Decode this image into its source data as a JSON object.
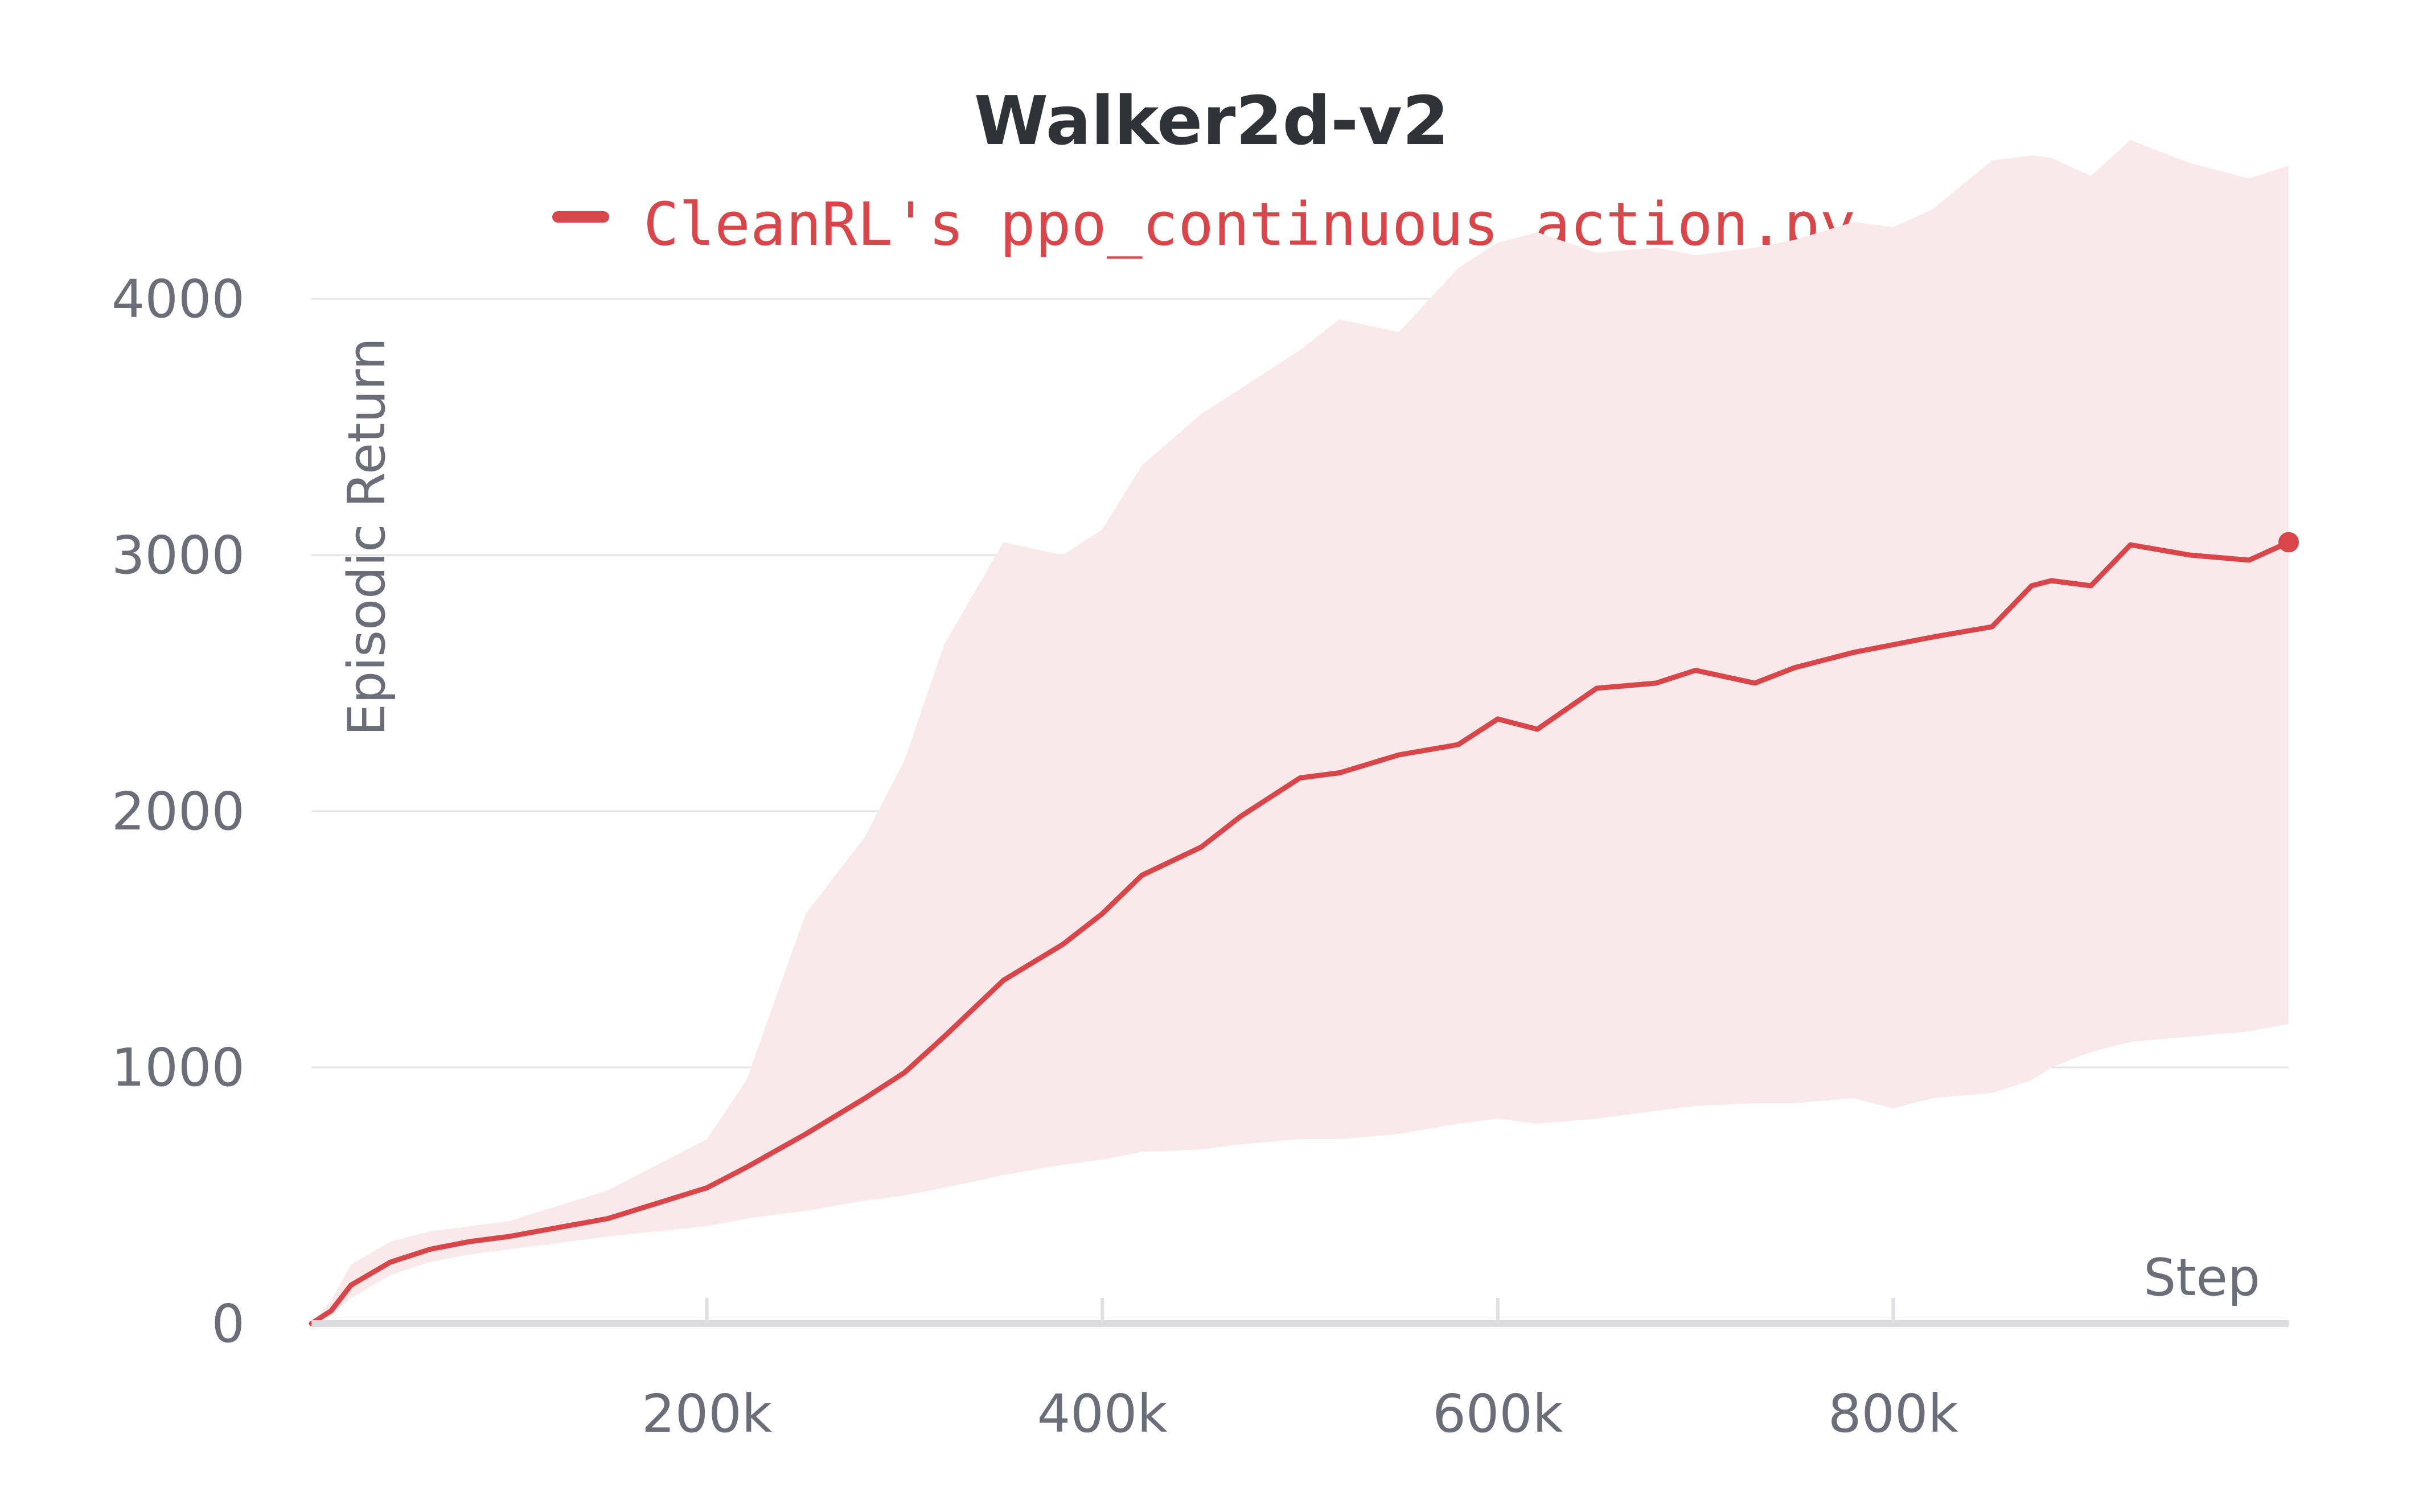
{
  "chart_data": {
    "type": "line",
    "title": "Walker2d-v2",
    "xlabel": "Step",
    "ylabel": "Episodic Return",
    "xlim": [
      0,
      1000000
    ],
    "ylim": [
      0,
      4500
    ],
    "x_ticks": [
      200000,
      400000,
      600000,
      800000
    ],
    "x_tick_labels": [
      "200k",
      "400k",
      "600k",
      "800k"
    ],
    "y_ticks": [
      0,
      1000,
      2000,
      3000,
      4000
    ],
    "y_tick_labels": [
      "0",
      "1000",
      "2000",
      "3000",
      "4000"
    ],
    "grid": true,
    "legend": "top-center",
    "series": [
      {
        "name": "CleanRL's ppo_continuous_action.py",
        "color": "#d9464a",
        "band_color": "#f9e9ea",
        "x": [
          0,
          10000,
          20000,
          40000,
          60000,
          80000,
          100000,
          150000,
          200000,
          220000,
          250000,
          280000,
          300000,
          320000,
          350000,
          380000,
          400000,
          420000,
          450000,
          470000,
          500000,
          520000,
          550000,
          580000,
          600000,
          620000,
          650000,
          680000,
          700000,
          730000,
          750000,
          780000,
          800000,
          820000,
          850000,
          870000,
          880000,
          900000,
          920000,
          950000,
          980000,
          1000000
        ],
        "mean": [
          0,
          50,
          150,
          240,
          290,
          320,
          340,
          410,
          530,
          610,
          740,
          880,
          980,
          1120,
          1340,
          1480,
          1600,
          1750,
          1860,
          1980,
          2130,
          2150,
          2220,
          2260,
          2360,
          2320,
          2480,
          2500,
          2550,
          2500,
          2560,
          2620,
          2650,
          2680,
          2720,
          2880,
          2900,
          2880,
          3040,
          3000,
          2980,
          3050
        ],
        "upper": [
          0,
          90,
          230,
          320,
          360,
          380,
          400,
          520,
          720,
          950,
          1600,
          1900,
          2200,
          2650,
          3050,
          3000,
          3100,
          3350,
          3550,
          3650,
          3800,
          3920,
          3870,
          4120,
          4220,
          4260,
          4180,
          4200,
          4170,
          4200,
          4230,
          4300,
          4280,
          4350,
          4540,
          4560,
          4550,
          4480,
          4620,
          4530,
          4470,
          4520
        ],
        "lower": [
          0,
          30,
          100,
          190,
          240,
          270,
          290,
          340,
          380,
          410,
          440,
          480,
          500,
          530,
          580,
          620,
          640,
          670,
          680,
          700,
          720,
          720,
          740,
          780,
          800,
          780,
          800,
          830,
          850,
          860,
          860,
          880,
          840,
          880,
          900,
          950,
          1000,
          1060,
          1100,
          1120,
          1140,
          1170
        ]
      }
    ]
  }
}
